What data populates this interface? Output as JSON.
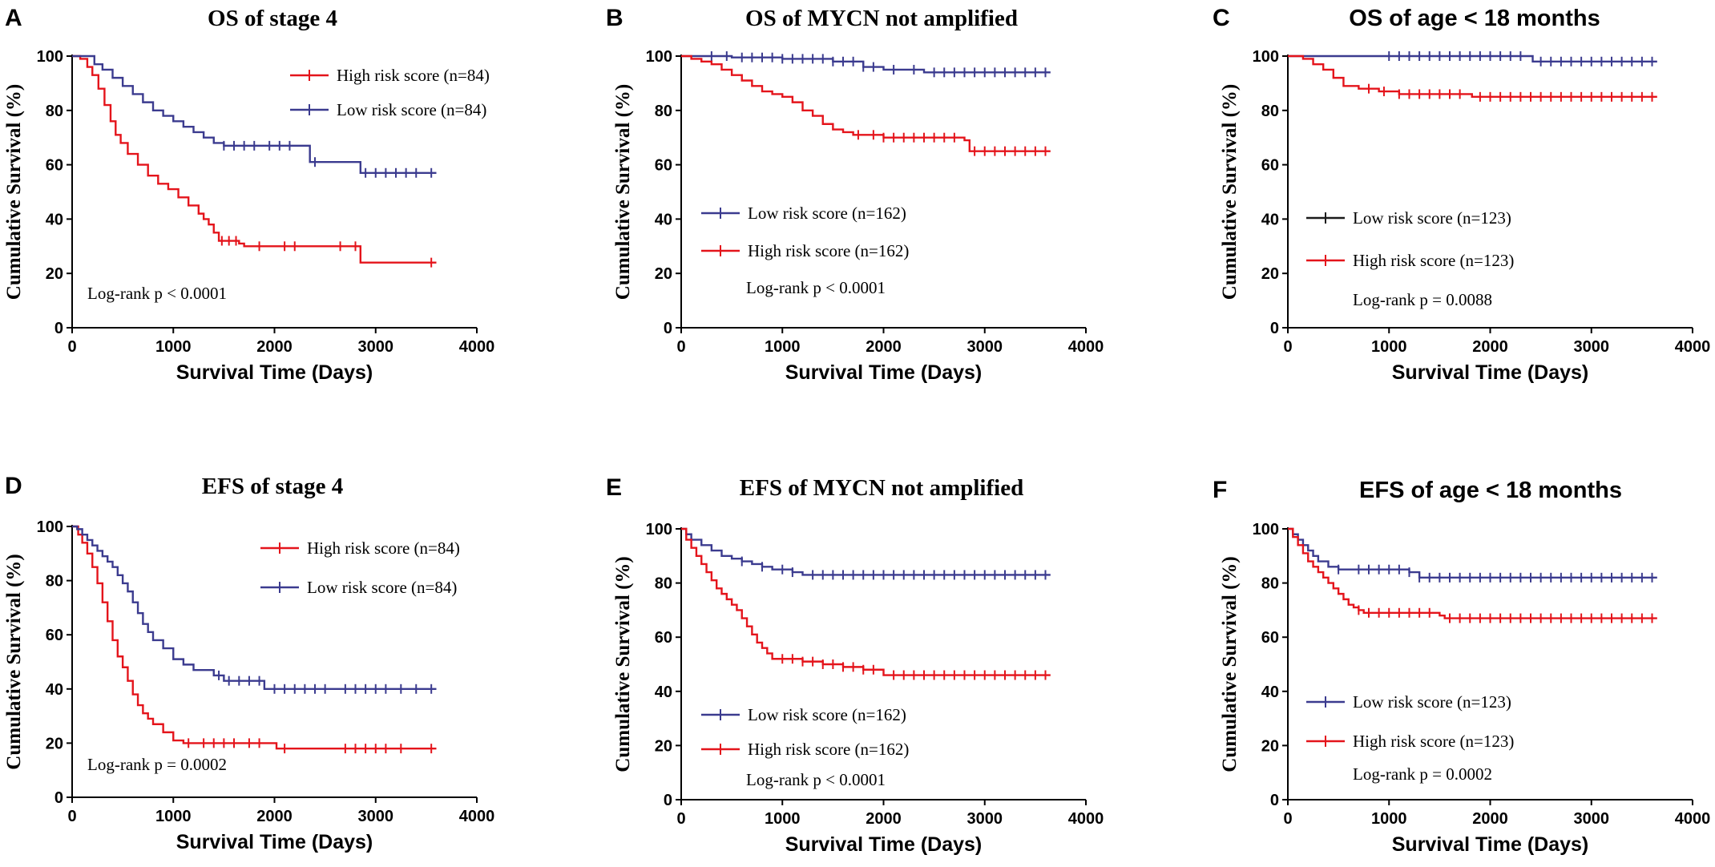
{
  "colors": {
    "low": "#3b3b8f",
    "high": "#e4141b",
    "black": "#1a1a1a",
    "axis": "#000000"
  },
  "chart_data": [
    {
      "type": "line",
      "panel": "A",
      "title": "OS of stage 4",
      "xlabel": "Survival Time (Days)",
      "ylabel": "Cumulative Survival (%)",
      "xlim": [
        0,
        4000
      ],
      "ylim": [
        0,
        100
      ],
      "xticks": [
        0,
        1000,
        2000,
        3000,
        4000
      ],
      "yticks": [
        0,
        20,
        40,
        60,
        80,
        100
      ],
      "legend_position": "top-right",
      "annotation": "Log-rank p < 0.0001",
      "series": [
        {
          "name": "High risk score (n=84)",
          "color": "high",
          "x": [
            0,
            80,
            150,
            200,
            260,
            320,
            380,
            430,
            480,
            550,
            650,
            750,
            850,
            950,
            1050,
            1150,
            1250,
            1300,
            1350,
            1400,
            1450,
            1550,
            1650,
            1700,
            2000,
            2500,
            2820,
            2850,
            3000,
            3500,
            3600
          ],
          "y": [
            100,
            99,
            96,
            93,
            88,
            82,
            76,
            71,
            68,
            64,
            60,
            56,
            53,
            51,
            48,
            45,
            42,
            40,
            38,
            35,
            32,
            32,
            31,
            30,
            30,
            30,
            30,
            24,
            24,
            24,
            24
          ],
          "censor_x": [
            1480,
            1550,
            1620,
            1850,
            2100,
            2200,
            2650,
            2800,
            3550
          ]
        },
        {
          "name": "Low risk score (n=84)",
          "color": "low",
          "x": [
            0,
            150,
            220,
            300,
            400,
            500,
            600,
            700,
            800,
            900,
            1000,
            1100,
            1200,
            1300,
            1400,
            1500,
            2300,
            2350,
            2800,
            2850,
            3600
          ],
          "y": [
            100,
            100,
            97,
            95,
            92,
            89,
            86,
            83,
            80,
            78,
            76,
            74,
            72,
            70,
            68,
            67,
            67,
            61,
            61,
            57,
            57
          ],
          "censor_x": [
            1500,
            1600,
            1700,
            1800,
            1950,
            2050,
            2150,
            2400,
            2900,
            3000,
            3100,
            3200,
            3300,
            3400,
            3550
          ]
        }
      ]
    },
    {
      "type": "line",
      "panel": "B",
      "title": "OS of MYCN not amplified",
      "xlabel": "Survival Time (Days)",
      "ylabel": "Cumulative Survival (%)",
      "xlim": [
        0,
        4000
      ],
      "ylim": [
        0,
        100
      ],
      "xticks": [
        0,
        1000,
        2000,
        3000,
        4000
      ],
      "yticks": [
        0,
        20,
        40,
        60,
        80,
        100
      ],
      "legend_position": "lower-left",
      "annotation": "Log-rank p < 0.0001",
      "series": [
        {
          "name": "Low risk score (n=162)",
          "color": "low",
          "x": [
            0,
            200,
            500,
            1000,
            1500,
            1800,
            2000,
            2400,
            3650
          ],
          "y": [
            100,
            100,
            99.5,
            99,
            98,
            96,
            95,
            94,
            94
          ],
          "censor_x": [
            300,
            450,
            600,
            700,
            800,
            900,
            1000,
            1100,
            1200,
            1300,
            1400,
            1500,
            1600,
            1700,
            1800,
            1900,
            2100,
            2300,
            2500,
            2600,
            2700,
            2800,
            2900,
            3000,
            3100,
            3200,
            3300,
            3400,
            3500,
            3600
          ]
        },
        {
          "name": "High risk score (n=162)",
          "color": "high",
          "x": [
            0,
            100,
            200,
            300,
            400,
            500,
            600,
            700,
            800,
            900,
            1000,
            1100,
            1200,
            1300,
            1400,
            1500,
            1600,
            1700,
            1800,
            2000,
            2400,
            2800,
            2850,
            3650
          ],
          "y": [
            100,
            99,
            98,
            97,
            95,
            93,
            91,
            89,
            87,
            86,
            85,
            83,
            80,
            78,
            75,
            73,
            72,
            71,
            71,
            70,
            70,
            69,
            65,
            65
          ],
          "censor_x": [
            1750,
            1900,
            2000,
            2100,
            2200,
            2300,
            2400,
            2500,
            2600,
            2700,
            2900,
            3000,
            3100,
            3200,
            3300,
            3400,
            3500,
            3600
          ]
        }
      ]
    },
    {
      "type": "line",
      "panel": "C",
      "title": "OS of age < 18 months",
      "xlabel": "Survival Time (Days)",
      "ylabel": "Cumulative Survival (%)",
      "xlim": [
        0,
        4000
      ],
      "ylim": [
        0,
        100
      ],
      "xticks": [
        0,
        1000,
        2000,
        3000,
        4000
      ],
      "yticks": [
        0,
        20,
        40,
        60,
        80,
        100
      ],
      "legend_position": "lower-left",
      "annotation": "Log-rank p = 0.0088",
      "series": [
        {
          "name": "Low risk score (n=123)",
          "color": "low",
          "legend_color": "black",
          "x": [
            0,
            2400,
            2420,
            3650
          ],
          "y": [
            100,
            100,
            98,
            98
          ],
          "censor_x": [
            1000,
            1100,
            1200,
            1300,
            1400,
            1500,
            1600,
            1700,
            1800,
            1900,
            2000,
            2100,
            2200,
            2300,
            2500,
            2600,
            2700,
            2800,
            2900,
            3000,
            3100,
            3200,
            3300,
            3400,
            3500,
            3600
          ]
        },
        {
          "name": "High risk score (n=123)",
          "color": "high",
          "x": [
            0,
            150,
            250,
            350,
            450,
            550,
            700,
            900,
            1100,
            1800,
            1820,
            3650
          ],
          "y": [
            100,
            99,
            97,
            95,
            92,
            89,
            88,
            87,
            86,
            86,
            85,
            85
          ],
          "censor_x": [
            800,
            950,
            1100,
            1200,
            1300,
            1400,
            1500,
            1600,
            1700,
            1900,
            2000,
            2100,
            2200,
            2300,
            2400,
            2500,
            2600,
            2700,
            2800,
            2900,
            3000,
            3100,
            3200,
            3300,
            3400,
            3500,
            3600
          ]
        }
      ]
    },
    {
      "type": "line",
      "panel": "D",
      "title": "EFS of stage 4",
      "xlabel": "Survival Time (Days)",
      "ylabel": "Cumulative Survival (%)",
      "xlim": [
        0,
        4000
      ],
      "ylim": [
        0,
        100
      ],
      "xticks": [
        0,
        1000,
        2000,
        3000,
        4000
      ],
      "yticks": [
        0,
        20,
        40,
        60,
        80,
        100
      ],
      "legend_position": "top-right",
      "annotation": "Log-rank p = 0.0002",
      "series": [
        {
          "name": "High risk score (n=84)",
          "color": "high",
          "x": [
            0,
            60,
            100,
            150,
            200,
            250,
            300,
            350,
            400,
            450,
            500,
            550,
            600,
            650,
            700,
            750,
            800,
            900,
            1000,
            1100,
            1200,
            2000,
            2020,
            3600
          ],
          "y": [
            100,
            97,
            94,
            90,
            85,
            79,
            72,
            65,
            58,
            52,
            48,
            43,
            38,
            34,
            31,
            29,
            27,
            24,
            21,
            20,
            20,
            20,
            18,
            18
          ],
          "censor_x": [
            1150,
            1300,
            1400,
            1500,
            1600,
            1750,
            1850,
            2100,
            2700,
            2800,
            2900,
            3000,
            3100,
            3250,
            3550
          ]
        },
        {
          "name": "Low risk score (n=84)",
          "color": "low",
          "x": [
            0,
            50,
            100,
            150,
            200,
            250,
            300,
            350,
            400,
            450,
            500,
            550,
            600,
            650,
            700,
            750,
            800,
            900,
            1000,
            1100,
            1200,
            1400,
            1500,
            1850,
            1900,
            3600
          ],
          "y": [
            100,
            99,
            97,
            95,
            93,
            91,
            89,
            87,
            85,
            82,
            79,
            76,
            72,
            68,
            64,
            61,
            58,
            55,
            51,
            49,
            47,
            45,
            43,
            43,
            40,
            40
          ],
          "censor_x": [
            1450,
            1550,
            1650,
            1750,
            1850,
            2000,
            2100,
            2200,
            2300,
            2400,
            2500,
            2700,
            2800,
            2900,
            3000,
            3100,
            3250,
            3400,
            3550
          ]
        }
      ]
    },
    {
      "type": "line",
      "panel": "E",
      "title": "EFS of MYCN not amplified",
      "xlabel": "Survival Time (Days)",
      "ylabel": "Cumulative Survival (%)",
      "xlim": [
        0,
        4000
      ],
      "ylim": [
        0,
        100
      ],
      "xticks": [
        0,
        1000,
        2000,
        3000,
        4000
      ],
      "yticks": [
        0,
        20,
        40,
        60,
        80,
        100
      ],
      "legend_position": "lower-left",
      "annotation": "Log-rank p < 0.0001",
      "series": [
        {
          "name": "Low risk score (n=162)",
          "color": "low",
          "x": [
            0,
            50,
            100,
            200,
            300,
            400,
            500,
            600,
            700,
            800,
            900,
            1000,
            1100,
            1200,
            1300,
            3650
          ],
          "y": [
            100,
            98,
            96,
            94,
            92,
            90,
            89,
            88,
            87,
            86,
            85,
            85,
            84,
            83,
            83,
            83
          ],
          "censor_x": [
            600,
            800,
            1000,
            1100,
            1300,
            1400,
            1500,
            1600,
            1700,
            1800,
            1900,
            2000,
            2100,
            2200,
            2300,
            2400,
            2500,
            2600,
            2700,
            2800,
            2900,
            3000,
            3100,
            3200,
            3300,
            3400,
            3500,
            3600
          ]
        },
        {
          "name": "High risk score (n=162)",
          "color": "high",
          "x": [
            0,
            50,
            100,
            150,
            200,
            250,
            300,
            350,
            400,
            450,
            500,
            550,
            600,
            650,
            700,
            750,
            800,
            850,
            900,
            1000,
            1100,
            1200,
            1300,
            1400,
            1500,
            1600,
            1700,
            1800,
            1900,
            2000,
            3650
          ],
          "y": [
            100,
            96,
            93,
            90,
            87,
            84,
            81,
            78,
            76,
            74,
            72,
            70,
            67,
            64,
            61,
            58,
            56,
            54,
            52,
            52,
            52,
            51,
            51,
            50,
            50,
            49,
            49,
            48,
            48,
            46,
            46
          ],
          "censor_x": [
            1000,
            1100,
            1200,
            1300,
            1400,
            1500,
            1600,
            1700,
            1800,
            1900,
            2100,
            2200,
            2300,
            2400,
            2500,
            2600,
            2700,
            2800,
            2900,
            3000,
            3100,
            3200,
            3300,
            3400,
            3500,
            3600
          ]
        }
      ]
    },
    {
      "type": "line",
      "panel": "F",
      "title": "EFS of age < 18 months",
      "xlabel": "Survival Time (Days)",
      "ylabel": "Cumulative Survival (%)",
      "xlim": [
        0,
        4000
      ],
      "ylim": [
        0,
        100
      ],
      "xticks": [
        0,
        1000,
        2000,
        3000,
        4000
      ],
      "yticks": [
        0,
        20,
        40,
        60,
        80,
        100
      ],
      "legend_position": "lower-left",
      "annotation": "Log-rank p = 0.0002",
      "series": [
        {
          "name": "Low risk score (n=123)",
          "color": "low",
          "x": [
            0,
            50,
            100,
            150,
            200,
            250,
            300,
            400,
            500,
            600,
            1200,
            1300,
            3650
          ],
          "y": [
            100,
            98,
            96,
            94,
            92,
            90,
            88,
            86,
            85,
            85,
            84,
            82,
            82
          ],
          "censor_x": [
            500,
            700,
            800,
            900,
            1000,
            1100,
            1200,
            1300,
            1400,
            1500,
            1600,
            1700,
            1800,
            1900,
            2000,
            2100,
            2200,
            2300,
            2400,
            2500,
            2600,
            2700,
            2800,
            2900,
            3000,
            3100,
            3200,
            3300,
            3400,
            3500,
            3600
          ]
        },
        {
          "name": "High risk score (n=123)",
          "color": "high",
          "x": [
            0,
            50,
            100,
            150,
            200,
            250,
            300,
            350,
            400,
            450,
            500,
            550,
            600,
            650,
            700,
            750,
            800,
            1500,
            1550,
            3650
          ],
          "y": [
            100,
            97,
            94,
            91,
            88,
            86,
            84,
            82,
            80,
            78,
            76,
            74,
            72,
            71,
            70,
            69,
            69,
            68,
            67,
            67
          ],
          "censor_x": [
            700,
            800,
            900,
            1000,
            1100,
            1200,
            1300,
            1400,
            1600,
            1700,
            1800,
            1900,
            2000,
            2100,
            2200,
            2300,
            2400,
            2500,
            2600,
            2700,
            2800,
            2900,
            3000,
            3100,
            3200,
            3300,
            3400,
            3500,
            3600
          ]
        }
      ]
    }
  ]
}
